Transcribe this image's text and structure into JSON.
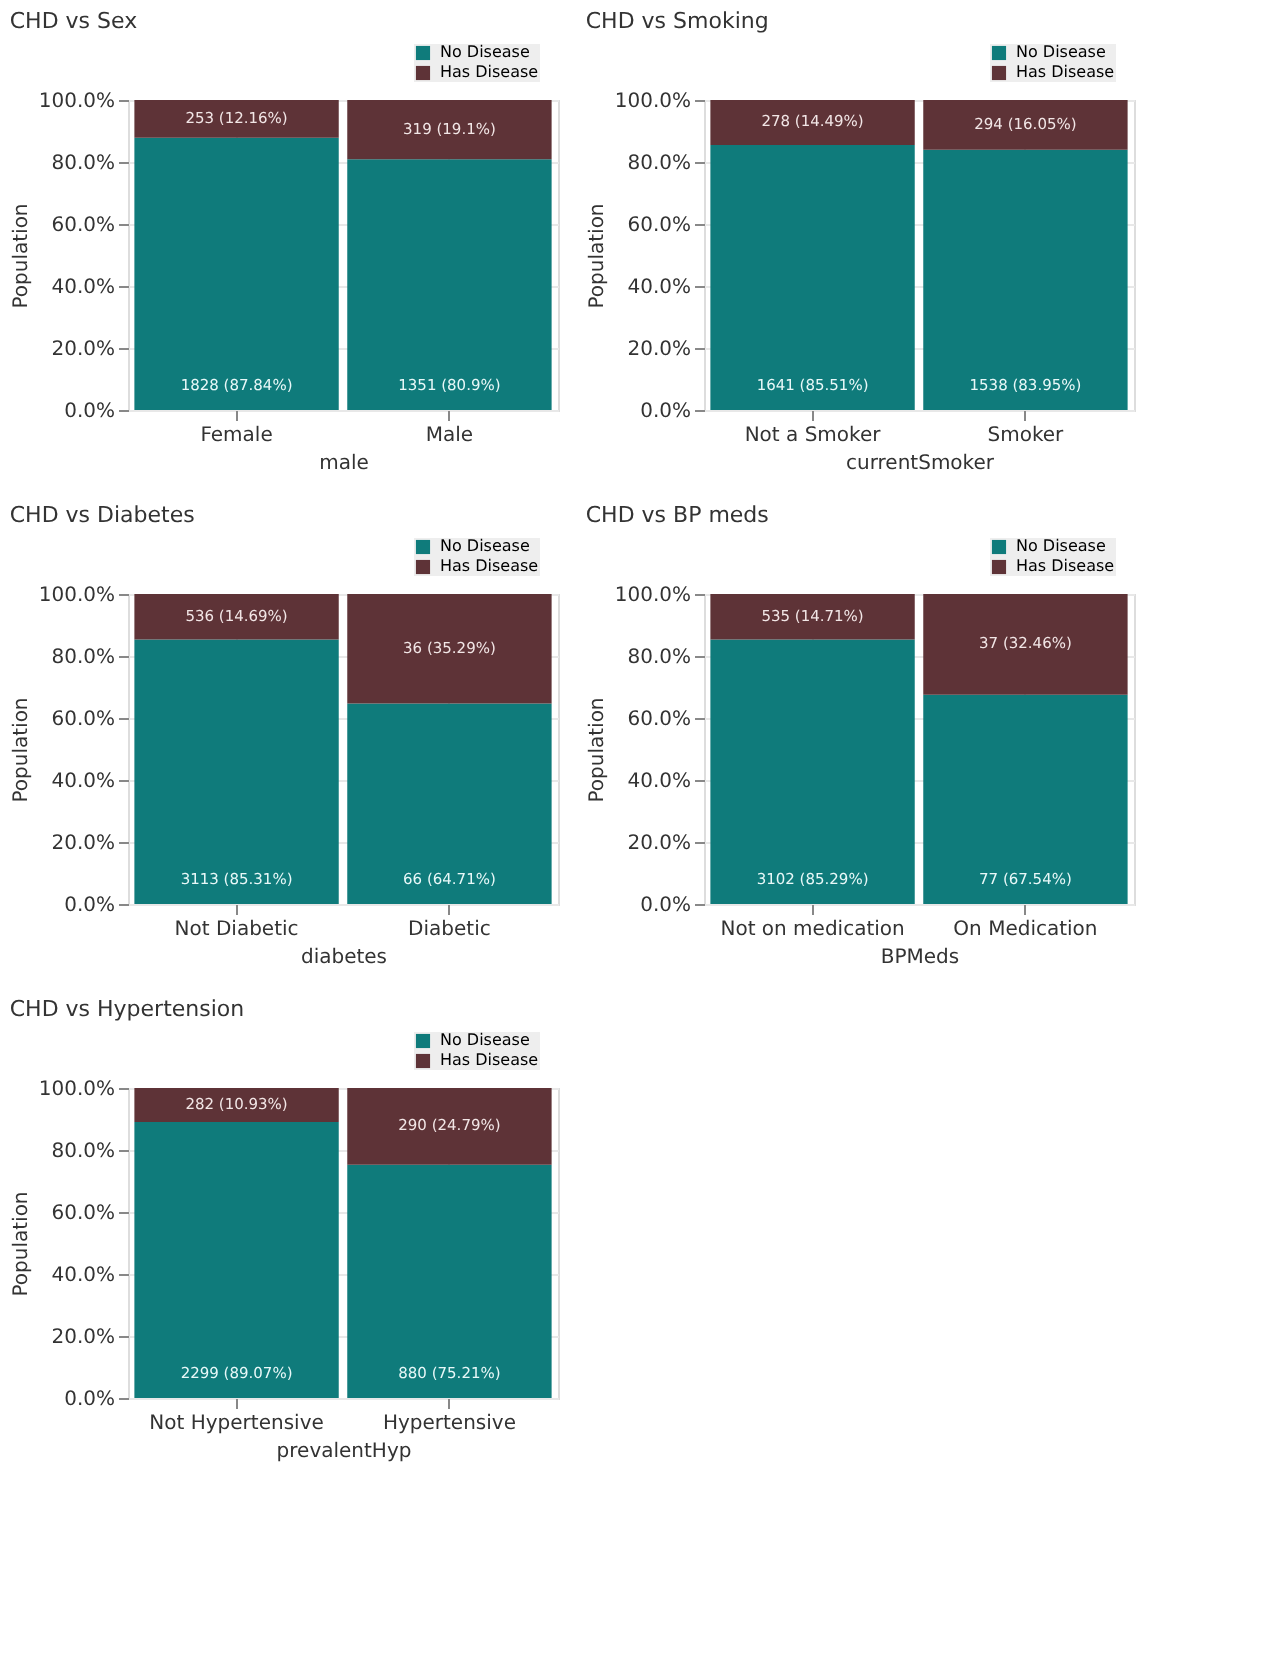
{
  "chart_data": [
    {
      "type": "bar",
      "title": "CHD vs Sex",
      "xlabel": "male",
      "ylabel": "Population",
      "categories": [
        "Female",
        "Male"
      ],
      "stacked": true,
      "ylim": [
        0,
        100
      ],
      "yticks": [
        {
          "value": 0,
          "label": "0.0%"
        },
        {
          "value": 20,
          "label": "20.0%"
        },
        {
          "value": 40,
          "label": "40.0%"
        },
        {
          "value": 60,
          "label": "60.0%"
        },
        {
          "value": 80,
          "label": "80.0%"
        },
        {
          "value": 100,
          "label": "100.0%"
        }
      ],
      "grid": true,
      "legend": "top right",
      "series": [
        {
          "name": "No Disease",
          "color": "#0f7b7b",
          "values": [
            87.84,
            80.9
          ],
          "value_labels": [
            "1828 (87.84%)",
            "1351 (80.9%)"
          ]
        },
        {
          "name": "Has Disease",
          "color": "#5e3337",
          "values": [
            12.16,
            19.1
          ],
          "value_labels": [
            "253 (12.16%)",
            "319 (19.1%)"
          ]
        }
      ]
    },
    {
      "type": "bar",
      "title": "CHD vs Smoking",
      "xlabel": "currentSmoker",
      "ylabel": "Population",
      "categories": [
        "Not a Smoker",
        "Smoker"
      ],
      "stacked": true,
      "ylim": [
        0,
        100
      ],
      "yticks": [
        {
          "value": 0,
          "label": "0.0%"
        },
        {
          "value": 20,
          "label": "20.0%"
        },
        {
          "value": 40,
          "label": "40.0%"
        },
        {
          "value": 60,
          "label": "60.0%"
        },
        {
          "value": 80,
          "label": "80.0%"
        },
        {
          "value": 100,
          "label": "100.0%"
        }
      ],
      "grid": true,
      "legend": "top right",
      "series": [
        {
          "name": "No Disease",
          "color": "#0f7b7b",
          "values": [
            85.51,
            83.95
          ],
          "value_labels": [
            "1641 (85.51%)",
            "1538 (83.95%)"
          ]
        },
        {
          "name": "Has Disease",
          "color": "#5e3337",
          "values": [
            14.49,
            16.05
          ],
          "value_labels": [
            "278 (14.49%)",
            "294 (16.05%)"
          ]
        }
      ]
    },
    {
      "type": "bar",
      "title": "CHD vs Diabetes",
      "xlabel": "diabetes",
      "ylabel": "Population",
      "categories": [
        "Not Diabetic",
        "Diabetic"
      ],
      "stacked": true,
      "ylim": [
        0,
        100
      ],
      "yticks": [
        {
          "value": 0,
          "label": "0.0%"
        },
        {
          "value": 20,
          "label": "20.0%"
        },
        {
          "value": 40,
          "label": "40.0%"
        },
        {
          "value": 60,
          "label": "60.0%"
        },
        {
          "value": 80,
          "label": "80.0%"
        },
        {
          "value": 100,
          "label": "100.0%"
        }
      ],
      "grid": true,
      "legend": "top right",
      "series": [
        {
          "name": "No Disease",
          "color": "#0f7b7b",
          "values": [
            85.31,
            64.71
          ],
          "value_labels": [
            "3113 (85.31%)",
            "66 (64.71%)"
          ]
        },
        {
          "name": "Has Disease",
          "color": "#5e3337",
          "values": [
            14.69,
            35.29
          ],
          "value_labels": [
            "536 (14.69%)",
            "36 (35.29%)"
          ]
        }
      ]
    },
    {
      "type": "bar",
      "title": "CHD vs BP meds",
      "xlabel": "BPMeds",
      "ylabel": "Population",
      "categories": [
        "Not on medication",
        "On Medication"
      ],
      "stacked": true,
      "ylim": [
        0,
        100
      ],
      "yticks": [
        {
          "value": 0,
          "label": "0.0%"
        },
        {
          "value": 20,
          "label": "20.0%"
        },
        {
          "value": 40,
          "label": "40.0%"
        },
        {
          "value": 60,
          "label": "60.0%"
        },
        {
          "value": 80,
          "label": "80.0%"
        },
        {
          "value": 100,
          "label": "100.0%"
        }
      ],
      "grid": true,
      "legend": "top right",
      "series": [
        {
          "name": "No Disease",
          "color": "#0f7b7b",
          "values": [
            85.29,
            67.54
          ],
          "value_labels": [
            "3102 (85.29%)",
            "77 (67.54%)"
          ]
        },
        {
          "name": "Has Disease",
          "color": "#5e3337",
          "values": [
            14.71,
            32.46
          ],
          "value_labels": [
            "535 (14.71%)",
            "37 (32.46%)"
          ]
        }
      ]
    },
    {
      "type": "bar",
      "title": "CHD vs Hypertension",
      "xlabel": "prevalentHyp",
      "ylabel": "Population",
      "categories": [
        "Not Hypertensive",
        "Hypertensive"
      ],
      "stacked": true,
      "ylim": [
        0,
        100
      ],
      "yticks": [
        {
          "value": 0,
          "label": "0.0%"
        },
        {
          "value": 20,
          "label": "20.0%"
        },
        {
          "value": 40,
          "label": "40.0%"
        },
        {
          "value": 60,
          "label": "60.0%"
        },
        {
          "value": 80,
          "label": "80.0%"
        },
        {
          "value": 100,
          "label": "100.0%"
        }
      ],
      "grid": true,
      "legend": "top right",
      "series": [
        {
          "name": "No Disease",
          "color": "#0f7b7b",
          "values": [
            89.07,
            75.21
          ],
          "value_labels": [
            "2299 (89.07%)",
            "880 (75.21%)"
          ]
        },
        {
          "name": "Has Disease",
          "color": "#5e3337",
          "values": [
            10.93,
            24.79
          ],
          "value_labels": [
            "282 (10.93%)",
            "290 (24.79%)"
          ]
        }
      ]
    }
  ]
}
